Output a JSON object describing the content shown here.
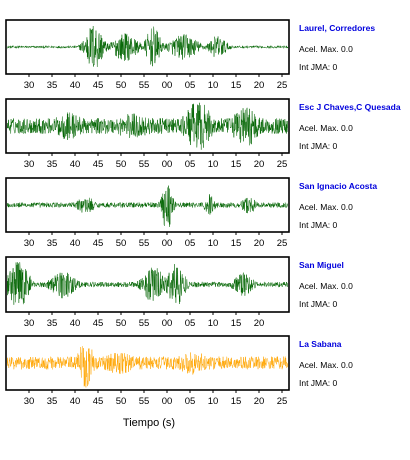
{
  "chart_data": {
    "type": "line",
    "xlabel": "Tiempo (s)",
    "colors": {
      "station_label": "#0000dd",
      "frame": "#000000"
    },
    "panels": [
      {
        "station": "Laurel, Corredores",
        "accel_label": "Acel. Max. 0.0",
        "jma_label": "Int JMA: 0",
        "trace_color": "#006400",
        "tick_labels": [
          "30",
          "35",
          "40",
          "45",
          "50",
          "55",
          "00",
          "05",
          "10",
          "15",
          "20",
          "25"
        ],
        "bursts": [
          {
            "center": 0.31,
            "width": 0.05,
            "amp": 0.95
          },
          {
            "center": 0.42,
            "width": 0.07,
            "amp": 0.55
          },
          {
            "center": 0.52,
            "width": 0.04,
            "amp": 0.8
          },
          {
            "center": 0.63,
            "width": 0.08,
            "amp": 0.5
          },
          {
            "center": 0.75,
            "width": 0.05,
            "amp": 0.45
          }
        ],
        "noise": 0.05
      },
      {
        "station": "Esc J Chaves,C Quesada",
        "accel_label": "Acel. Max. 0.0",
        "jma_label": "Int JMA: 0",
        "trace_color": "#006400",
        "tick_labels": [
          "30",
          "35",
          "40",
          "45",
          "50",
          "55",
          "00",
          "05",
          "10",
          "15",
          "20",
          "25"
        ],
        "bursts": [
          {
            "center": 0.22,
            "width": 0.09,
            "amp": 0.55
          },
          {
            "center": 0.45,
            "width": 0.12,
            "amp": 0.5
          },
          {
            "center": 0.68,
            "width": 0.08,
            "amp": 0.95
          },
          {
            "center": 0.85,
            "width": 0.08,
            "amp": 0.8
          }
        ],
        "noise": 0.3
      },
      {
        "station": "San Ignacio Acosta",
        "accel_label": "Acel. Max. 0.0",
        "jma_label": "Int JMA: 0",
        "trace_color": "#006400",
        "tick_labels": [
          "30",
          "35",
          "40",
          "45",
          "50",
          "55",
          "00",
          "05",
          "10",
          "15",
          "20",
          "25"
        ],
        "bursts": [
          {
            "center": 0.28,
            "width": 0.05,
            "amp": 0.35
          },
          {
            "center": 0.57,
            "width": 0.03,
            "amp": 1.0
          },
          {
            "center": 0.72,
            "width": 0.03,
            "amp": 0.45
          },
          {
            "center": 0.86,
            "width": 0.04,
            "amp": 0.35
          }
        ],
        "noise": 0.1
      },
      {
        "station": "San Miguel",
        "accel_label": "Acel. Max. 0.0",
        "jma_label": "Int JMA: 0",
        "trace_color": "#006400",
        "tick_labels": [
          "30",
          "35",
          "40",
          "45",
          "50",
          "55",
          "00",
          "05",
          "10",
          "15",
          "20"
        ],
        "bursts": [
          {
            "center": 0.04,
            "width": 0.06,
            "amp": 0.9
          },
          {
            "center": 0.2,
            "width": 0.07,
            "amp": 0.55
          },
          {
            "center": 0.52,
            "width": 0.06,
            "amp": 0.7
          },
          {
            "center": 0.6,
            "width": 0.05,
            "amp": 0.85
          },
          {
            "center": 0.84,
            "width": 0.06,
            "amp": 0.45
          }
        ],
        "noise": 0.1
      },
      {
        "station": "La Sabana",
        "accel_label": "Acel. Max. 0.0",
        "jma_label": "Int JMA: 0",
        "trace_color": "#ffa500",
        "tick_labels": [
          "30",
          "35",
          "40",
          "45",
          "50",
          "55",
          "00",
          "05",
          "10",
          "15",
          "20",
          "25"
        ],
        "bursts": [
          {
            "center": 0.28,
            "width": 0.04,
            "amp": 1.0
          },
          {
            "center": 0.4,
            "width": 0.1,
            "amp": 0.45
          },
          {
            "center": 0.66,
            "width": 0.1,
            "amp": 0.45
          }
        ],
        "noise": 0.25
      }
    ]
  }
}
